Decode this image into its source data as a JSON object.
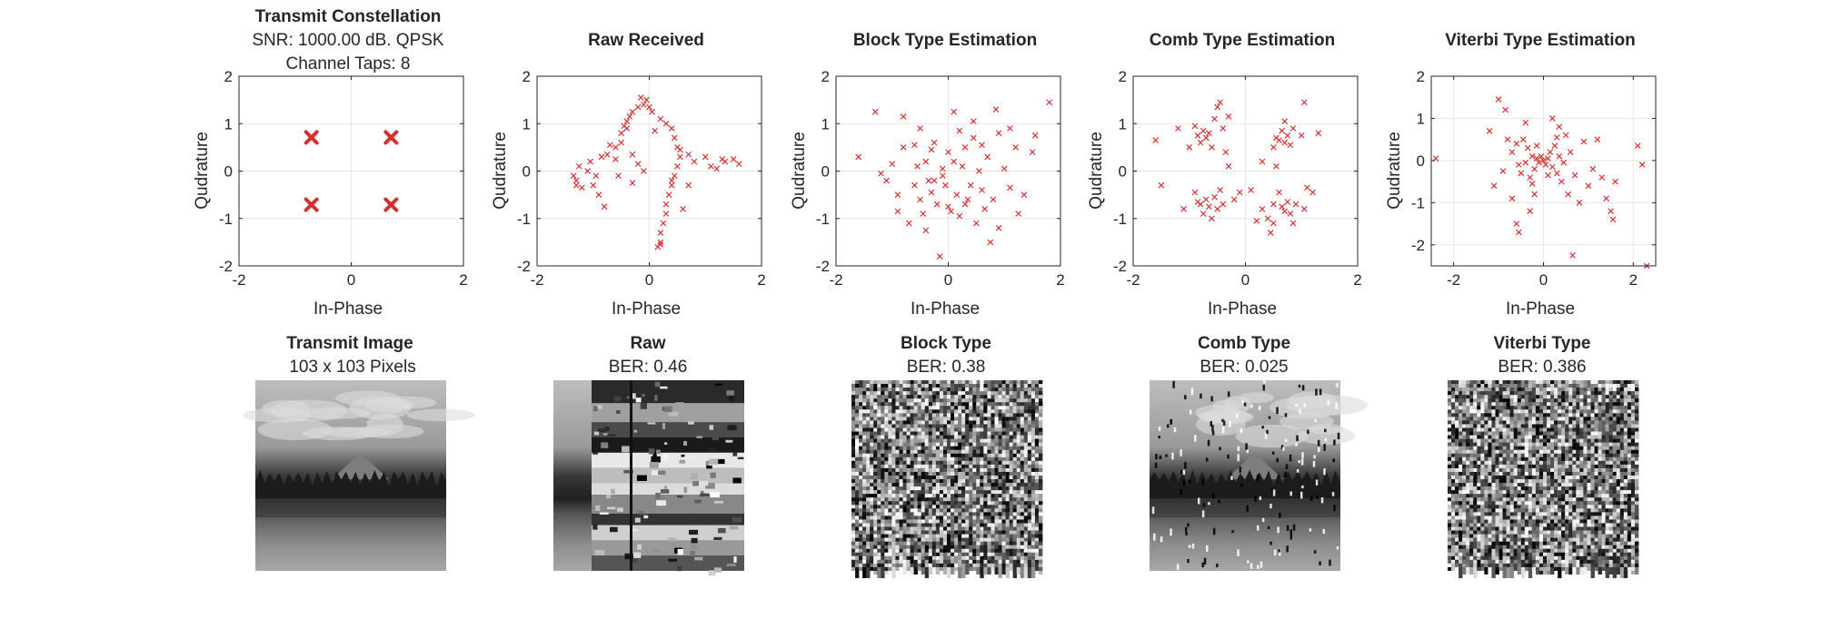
{
  "chart_data": [
    {
      "type": "scatter",
      "title": "Transmit Constellation",
      "subtitle": [
        "SNR: 1000.00 dB. QPSK",
        "Channel Taps: 8"
      ],
      "xlabel": "In-Phase",
      "ylabel": "Qudrature",
      "xlim": [
        -2,
        2
      ],
      "ylim": [
        -2,
        2
      ],
      "xticks": [
        "-2",
        "0",
        "2"
      ],
      "yticks": [
        "-2",
        "-1",
        "0",
        "1",
        "2"
      ],
      "grid": true,
      "marker": "x",
      "color": "#d62f2f",
      "marker_size": "large",
      "points": [
        [
          -0.71,
          0.71
        ],
        [
          0.71,
          0.71
        ],
        [
          -0.71,
          -0.71
        ],
        [
          0.71,
          -0.71
        ]
      ]
    },
    {
      "type": "scatter",
      "title": "Raw Received",
      "xlabel": "In-Phase",
      "ylabel": "Qudrature",
      "xlim": [
        -2,
        2
      ],
      "ylim": [
        -2,
        2
      ],
      "xticks": [
        "-2",
        "0",
        "2"
      ],
      "yticks": [
        "-2",
        "-1",
        "0",
        "1",
        "2"
      ],
      "grid": true,
      "marker": "x",
      "color": "#d62f2f",
      "marker_size": "small",
      "points": [
        [
          -1.3,
          -0.2
        ],
        [
          -1.35,
          -0.1
        ],
        [
          -1.2,
          -0.35
        ],
        [
          -1.1,
          0.0
        ],
        [
          -1.0,
          -0.3
        ],
        [
          -0.9,
          -0.5
        ],
        [
          -0.8,
          -0.75
        ],
        [
          -0.95,
          -0.1
        ],
        [
          -1.25,
          0.1
        ],
        [
          -1.3,
          -0.3
        ],
        [
          -1.05,
          0.2
        ],
        [
          -0.85,
          0.3
        ],
        [
          -0.75,
          0.35
        ],
        [
          -0.6,
          0.5
        ],
        [
          -0.5,
          0.8
        ],
        [
          -0.45,
          0.95
        ],
        [
          -0.4,
          1.05
        ],
        [
          -0.35,
          1.15
        ],
        [
          -0.3,
          1.25
        ],
        [
          -0.2,
          1.35
        ],
        [
          -0.1,
          1.4
        ],
        [
          -0.15,
          1.55
        ],
        [
          -0.05,
          1.5
        ],
        [
          0.0,
          1.35
        ],
        [
          0.05,
          1.25
        ],
        [
          0.2,
          1.1
        ],
        [
          0.3,
          1.0
        ],
        [
          0.4,
          0.9
        ],
        [
          0.45,
          0.7
        ],
        [
          0.5,
          0.5
        ],
        [
          0.55,
          0.3
        ],
        [
          0.5,
          0.1
        ],
        [
          0.45,
          -0.1
        ],
        [
          0.4,
          -0.3
        ],
        [
          0.35,
          -0.5
        ],
        [
          0.3,
          -0.7
        ],
        [
          0.3,
          -0.9
        ],
        [
          0.25,
          -1.1
        ],
        [
          0.2,
          -1.3
        ],
        [
          0.2,
          -1.5
        ],
        [
          0.15,
          -1.6
        ],
        [
          0.2,
          -1.55
        ],
        [
          0.4,
          -0.2
        ],
        [
          0.55,
          0.45
        ],
        [
          0.7,
          0.35
        ],
        [
          0.8,
          0.2
        ],
        [
          1.0,
          0.3
        ],
        [
          1.1,
          0.1
        ],
        [
          1.2,
          0.05
        ],
        [
          1.3,
          0.25
        ],
        [
          1.35,
          0.2
        ],
        [
          1.5,
          0.25
        ],
        [
          1.6,
          0.15
        ],
        [
          -0.4,
          0.9
        ],
        [
          -0.5,
          0.6
        ],
        [
          -0.3,
          0.35
        ],
        [
          -0.2,
          0.15
        ],
        [
          -0.1,
          0.0
        ],
        [
          -0.55,
          -0.1
        ],
        [
          -0.6,
          0.25
        ],
        [
          -0.7,
          0.55
        ],
        [
          0.1,
          0.85
        ],
        [
          0.6,
          -0.8
        ],
        [
          0.7,
          -0.3
        ],
        [
          -0.3,
          -0.25
        ]
      ]
    },
    {
      "type": "scatter",
      "title": "Block Type Estimation",
      "xlabel": "In-Phase",
      "ylabel": "Qudrature",
      "xlim": [
        -2,
        2
      ],
      "ylim": [
        -2,
        2
      ],
      "xticks": [
        "-2",
        "0",
        "2"
      ],
      "yticks": [
        "-2",
        "-1",
        "0",
        "1",
        "2"
      ],
      "grid": true,
      "marker": "x",
      "color": "#d62f2f",
      "marker_size": "small",
      "points": [
        [
          -1.6,
          0.3
        ],
        [
          -1.3,
          1.25
        ],
        [
          -1.2,
          -0.05
        ],
        [
          -1.1,
          -0.2
        ],
        [
          -0.9,
          -0.5
        ],
        [
          -0.8,
          0.5
        ],
        [
          -0.7,
          -1.1
        ],
        [
          -0.6,
          -0.3
        ],
        [
          -0.55,
          0.1
        ],
        [
          -0.5,
          -0.6
        ],
        [
          -0.45,
          -0.9
        ],
        [
          -0.4,
          0.2
        ],
        [
          -0.35,
          -0.2
        ],
        [
          -0.3,
          -0.45
        ],
        [
          -0.25,
          0.6
        ],
        [
          -0.2,
          -0.7
        ],
        [
          -0.15,
          -1.8
        ],
        [
          -0.1,
          0.05
        ],
        [
          -0.05,
          -0.3
        ],
        [
          0.0,
          0.4
        ],
        [
          0.05,
          -0.85
        ],
        [
          0.1,
          0.2
        ],
        [
          0.1,
          1.25
        ],
        [
          0.15,
          -0.5
        ],
        [
          0.2,
          -0.95
        ],
        [
          0.25,
          0.1
        ],
        [
          0.3,
          0.5
        ],
        [
          0.35,
          -0.6
        ],
        [
          0.4,
          -0.3
        ],
        [
          0.45,
          0.7
        ],
        [
          0.5,
          -1.1
        ],
        [
          0.55,
          0.0
        ],
        [
          0.6,
          -0.4
        ],
        [
          0.65,
          -0.8
        ],
        [
          0.7,
          0.3
        ],
        [
          0.8,
          -0.6
        ],
        [
          0.85,
          1.3
        ],
        [
          0.9,
          -1.2
        ],
        [
          1.0,
          0.05
        ],
        [
          1.1,
          -0.35
        ],
        [
          1.2,
          0.5
        ],
        [
          1.25,
          -0.9
        ],
        [
          1.35,
          -0.5
        ],
        [
          1.5,
          0.4
        ],
        [
          1.55,
          0.75
        ],
        [
          1.8,
          1.45
        ],
        [
          -0.8,
          1.15
        ],
        [
          -0.3,
          0.45
        ],
        [
          -0.25,
          -0.2
        ],
        [
          -1.0,
          0.15
        ],
        [
          -0.4,
          -1.25
        ],
        [
          0.3,
          -0.7
        ],
        [
          0.45,
          1.05
        ],
        [
          0.9,
          0.8
        ],
        [
          -0.6,
          0.55
        ],
        [
          -0.1,
          -0.1
        ],
        [
          0.2,
          0.85
        ],
        [
          0.75,
          -1.5
        ],
        [
          -0.5,
          0.9
        ],
        [
          1.1,
          0.9
        ],
        [
          0.6,
          0.55
        ],
        [
          -0.9,
          -0.85
        ],
        [
          0.0,
          -0.75
        ]
      ]
    },
    {
      "type": "scatter",
      "title": "Comb Type Estimation",
      "xlabel": "In-Phase",
      "ylabel": "Qudrature",
      "xlim": [
        -2,
        2
      ],
      "ylim": [
        -2,
        2
      ],
      "xticks": [
        "-2",
        "0",
        "2"
      ],
      "yticks": [
        "-2",
        "-1",
        "0",
        "1",
        "2"
      ],
      "grid": true,
      "marker": "x",
      "color": "#d62f2f",
      "marker_size": "small",
      "points": [
        [
          -1.6,
          0.65
        ],
        [
          -1.5,
          -0.3
        ],
        [
          -1.2,
          0.9
        ],
        [
          -1.0,
          0.5
        ],
        [
          -0.9,
          0.95
        ],
        [
          -0.85,
          0.75
        ],
        [
          -0.8,
          0.6
        ],
        [
          -0.75,
          0.85
        ],
        [
          -0.7,
          0.7
        ],
        [
          -0.65,
          0.8
        ],
        [
          -0.6,
          0.5
        ],
        [
          -0.55,
          1.1
        ],
        [
          -0.5,
          1.35
        ],
        [
          -0.45,
          1.45
        ],
        [
          -0.4,
          0.9
        ],
        [
          -0.35,
          0.4
        ],
        [
          -0.9,
          -0.45
        ],
        [
          -0.85,
          -0.65
        ],
        [
          -0.8,
          -0.7
        ],
        [
          -0.75,
          -0.9
        ],
        [
          -0.7,
          -0.6
        ],
        [
          -0.65,
          -0.75
        ],
        [
          -0.6,
          -1.0
        ],
        [
          -0.55,
          -0.55
        ],
        [
          -0.5,
          -0.8
        ],
        [
          -0.45,
          -0.4
        ],
        [
          -0.4,
          -0.7
        ],
        [
          -0.3,
          0.1
        ],
        [
          0.3,
          0.2
        ],
        [
          0.5,
          0.5
        ],
        [
          0.55,
          0.7
        ],
        [
          0.6,
          0.65
        ],
        [
          0.65,
          0.85
        ],
        [
          0.7,
          0.6
        ],
        [
          0.75,
          0.75
        ],
        [
          0.8,
          0.55
        ],
        [
          0.85,
          0.9
        ],
        [
          0.7,
          1.05
        ],
        [
          1.0,
          0.75
        ],
        [
          1.05,
          1.45
        ],
        [
          1.3,
          0.8
        ],
        [
          0.3,
          -0.8
        ],
        [
          0.4,
          -1.0
        ],
        [
          0.45,
          -1.3
        ],
        [
          0.5,
          -0.7
        ],
        [
          0.6,
          -0.45
        ],
        [
          0.65,
          -0.75
        ],
        [
          0.7,
          -0.85
        ],
        [
          0.75,
          -0.65
        ],
        [
          0.8,
          -0.9
        ],
        [
          0.85,
          -1.1
        ],
        [
          0.9,
          -0.7
        ],
        [
          1.05,
          -0.8
        ],
        [
          1.1,
          -0.35
        ],
        [
          0.5,
          -1.1
        ],
        [
          -0.1,
          -0.45
        ],
        [
          0.1,
          -0.4
        ],
        [
          0.2,
          -1.05
        ],
        [
          -0.2,
          -0.6
        ],
        [
          -0.3,
          1.15
        ],
        [
          -1.1,
          -0.8
        ],
        [
          0.55,
          0.1
        ],
        [
          1.2,
          -0.45
        ]
      ]
    },
    {
      "type": "scatter",
      "title": "Viterbi Type Estimation",
      "xlabel": "In-Phase",
      "ylabel": "Qudrature",
      "xlim": [
        -2.5,
        2.5
      ],
      "ylim": [
        -2.5,
        2.0
      ],
      "xticks": [
        "-2",
        "0",
        "2"
      ],
      "yticks": [
        "-2",
        "-1",
        "0",
        "1",
        "2"
      ],
      "grid": true,
      "marker": "x",
      "color": "#d62f2f",
      "marker_size": "small",
      "points": [
        [
          -2.4,
          0.05
        ],
        [
          -1.0,
          1.45
        ],
        [
          -0.85,
          1.2
        ],
        [
          -0.8,
          0.5
        ],
        [
          -0.7,
          0.2
        ],
        [
          -0.6,
          0.4
        ],
        [
          -0.55,
          -0.1
        ],
        [
          -0.5,
          -0.3
        ],
        [
          -0.45,
          0.5
        ],
        [
          -0.4,
          -0.05
        ],
        [
          -0.35,
          0.3
        ],
        [
          -0.3,
          -0.4
        ],
        [
          -0.25,
          0.1
        ],
        [
          -0.2,
          -0.2
        ],
        [
          -0.15,
          0.05
        ],
        [
          -0.1,
          -0.05
        ],
        [
          -0.05,
          0.1
        ],
        [
          0.0,
          0.0
        ],
        [
          0.05,
          -0.1
        ],
        [
          0.1,
          0.05
        ],
        [
          0.15,
          0.2
        ],
        [
          0.2,
          -0.15
        ],
        [
          0.25,
          0.35
        ],
        [
          0.3,
          -0.3
        ],
        [
          0.35,
          0.1
        ],
        [
          0.4,
          -0.5
        ],
        [
          0.5,
          0.6
        ],
        [
          0.55,
          -0.8
        ],
        [
          0.6,
          0.2
        ],
        [
          0.7,
          -0.35
        ],
        [
          0.8,
          -1.0
        ],
        [
          0.9,
          0.45
        ],
        [
          1.0,
          -0.6
        ],
        [
          1.1,
          -0.2
        ],
        [
          1.2,
          0.5
        ],
        [
          1.3,
          -0.4
        ],
        [
          1.4,
          -0.9
        ],
        [
          1.5,
          -1.2
        ],
        [
          1.6,
          -0.5
        ],
        [
          -1.1,
          -0.6
        ],
        [
          -1.2,
          0.7
        ],
        [
          -0.9,
          -0.25
        ],
        [
          -0.7,
          -0.9
        ],
        [
          -0.6,
          -1.5
        ],
        [
          -0.55,
          -1.7
        ],
        [
          -0.3,
          -1.2
        ],
        [
          -0.2,
          -0.8
        ],
        [
          0.2,
          1.0
        ],
        [
          0.35,
          0.8
        ],
        [
          -0.4,
          0.9
        ],
        [
          0.45,
          -0.05
        ],
        [
          0.65,
          -2.25
        ],
        [
          2.1,
          0.35
        ],
        [
          2.2,
          -0.1
        ],
        [
          2.3,
          -2.5
        ],
        [
          -0.15,
          0.35
        ],
        [
          0.1,
          -0.35
        ],
        [
          -0.25,
          -0.55
        ],
        [
          0.3,
          0.55
        ],
        [
          1.55,
          -1.4
        ]
      ]
    },
    {
      "type": "image",
      "title": "Transmit Image",
      "subtitle": "103 x 103 Pixels",
      "variant": "clean"
    },
    {
      "type": "image",
      "title": "Raw",
      "subtitle": "BER: 0.46",
      "variant": "raw"
    },
    {
      "type": "image",
      "title": "Block Type",
      "subtitle": "BER: 0.38",
      "variant": "noisy"
    },
    {
      "type": "image",
      "title": "Comb Type",
      "subtitle": "BER: 0.025",
      "variant": "clean-speckle"
    },
    {
      "type": "image",
      "title": "Viterbi Type",
      "subtitle": "BER: 0.386",
      "variant": "noisy"
    }
  ]
}
